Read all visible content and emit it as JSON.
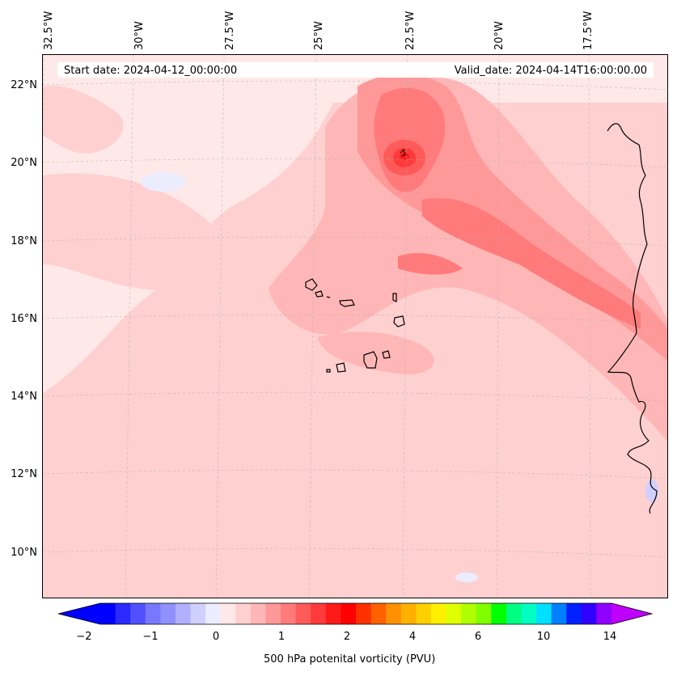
{
  "header": {
    "start_date": "Start date: 2024-04-12_00:00:00",
    "valid_date": "Valid_date: 2024-04-14T16:00:00.00"
  },
  "longitude_labels": [
    "32.5°W",
    "30°W",
    "27.5°W",
    "25°W",
    "22.5°W",
    "20°W",
    "17.5°W"
  ],
  "latitude_labels": [
    "22°N",
    "20°N",
    "18°N",
    "16°N",
    "14°N",
    "12°N",
    "10°N"
  ],
  "colorbar": {
    "title": "500 hPa potenital vorticity (PVU)",
    "tick_labels": [
      "−2",
      "−1",
      "0",
      "1",
      "2",
      "4",
      "6",
      "10",
      "14"
    ],
    "colors": [
      "#0000ff",
      "#2a2aff",
      "#5050ff",
      "#7878ff",
      "#9090ff",
      "#b0b0ff",
      "#d0d0ff",
      "#ececff",
      "#ffe8e8",
      "#ffd0d0",
      "#ffb6b6",
      "#ff9898",
      "#ff7a7a",
      "#ff5a5a",
      "#ff3a3a",
      "#ff1a1a",
      "#ff0000",
      "#ff3000",
      "#ff6000",
      "#ff9000",
      "#ffb000",
      "#ffd000",
      "#fff000",
      "#e0ff00",
      "#b0ff00",
      "#80ff00",
      "#00ff00",
      "#00ff80",
      "#00ffc0",
      "#00e0ff",
      "#0080ff",
      "#0020ff",
      "#3000ff",
      "#9000ff"
    ],
    "extend_left_color": "#0000ff",
    "extend_right_color": "#c000ff"
  }
}
